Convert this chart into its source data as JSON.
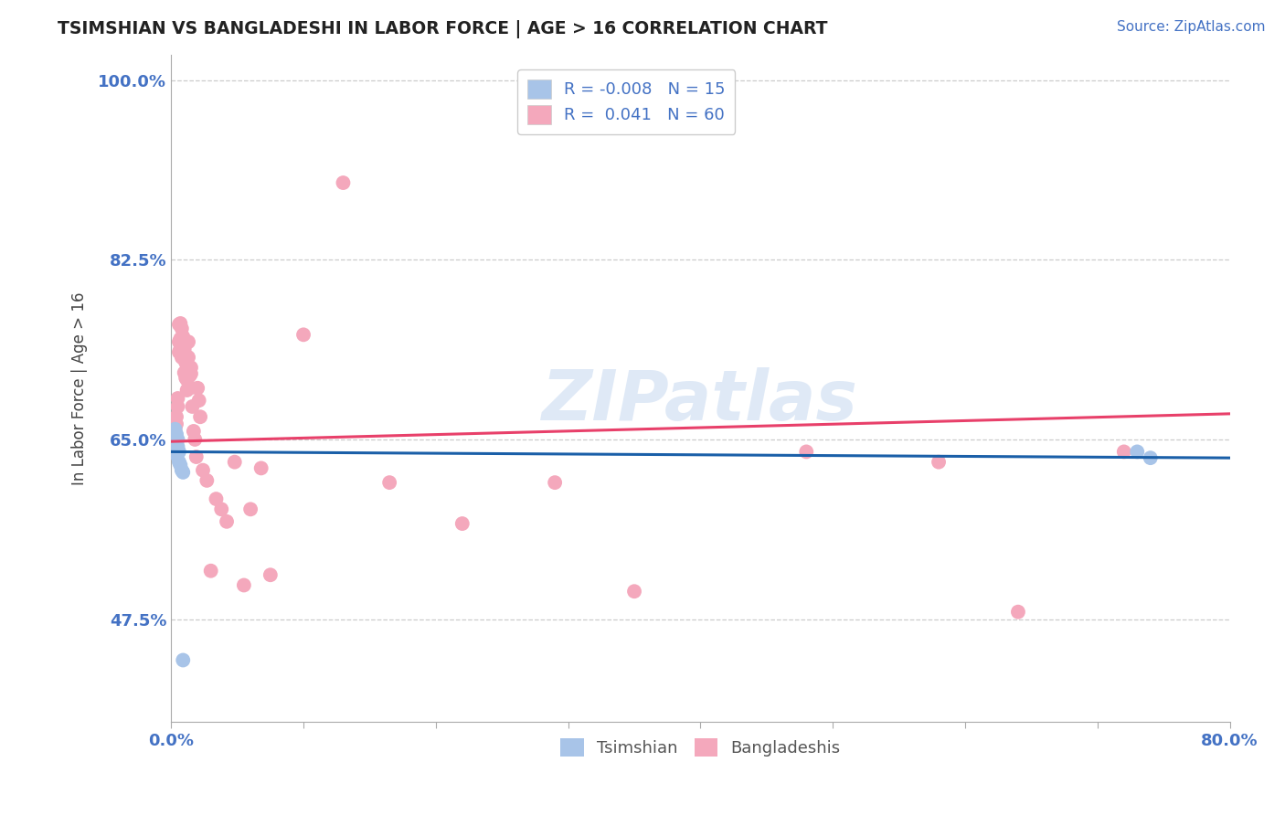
{
  "title": "TSIMSHIAN VS BANGLADESHI IN LABOR FORCE | AGE > 16 CORRELATION CHART",
  "source_text": "Source: ZipAtlas.com",
  "ylabel": "In Labor Force | Age > 16",
  "xlim": [
    0.0,
    0.8
  ],
  "ylim": [
    0.375,
    1.025
  ],
  "xticks": [
    0.0,
    0.1,
    0.2,
    0.3,
    0.4,
    0.5,
    0.6,
    0.7,
    0.8
  ],
  "xticklabels": [
    "0.0%",
    "",
    "",
    "",
    "",
    "",
    "",
    "",
    "80.0%"
  ],
  "ytick_positions": [
    0.475,
    0.65,
    0.825,
    1.0
  ],
  "ytick_labels": [
    "47.5%",
    "65.0%",
    "82.5%",
    "100.0%"
  ],
  "watermark": "ZIPatlas",
  "legend_r_tsimshian": "-0.008",
  "legend_n_tsimshian": "15",
  "legend_r_bangladeshi": "0.041",
  "legend_n_bangladeshi": "60",
  "tsimshian_color": "#a8c4e8",
  "bangladeshi_color": "#f4a8bc",
  "tsimshian_line_color": "#1a5fa8",
  "bangladeshi_line_color": "#e8406a",
  "background_color": "#ffffff",
  "grid_color": "#cccccc",
  "tsimshian_x": [
    0.003,
    0.003,
    0.004,
    0.004,
    0.004,
    0.005,
    0.005,
    0.006,
    0.006,
    0.007,
    0.008,
    0.009,
    0.009,
    0.73,
    0.74
  ],
  "tsimshian_y": [
    0.66,
    0.65,
    0.655,
    0.645,
    0.635,
    0.65,
    0.643,
    0.638,
    0.628,
    0.625,
    0.62,
    0.618,
    0.435,
    0.638,
    0.632
  ],
  "bangladeshi_x": [
    0.003,
    0.003,
    0.004,
    0.004,
    0.005,
    0.005,
    0.006,
    0.006,
    0.006,
    0.007,
    0.007,
    0.007,
    0.008,
    0.008,
    0.008,
    0.009,
    0.009,
    0.009,
    0.01,
    0.01,
    0.01,
    0.011,
    0.011,
    0.012,
    0.012,
    0.013,
    0.013,
    0.013,
    0.014,
    0.014,
    0.015,
    0.015,
    0.016,
    0.017,
    0.018,
    0.019,
    0.02,
    0.021,
    0.022,
    0.024,
    0.027,
    0.03,
    0.034,
    0.038,
    0.042,
    0.048,
    0.055,
    0.06,
    0.068,
    0.075,
    0.1,
    0.13,
    0.165,
    0.22,
    0.29,
    0.35,
    0.48,
    0.58,
    0.64,
    0.72
  ],
  "bangladeshi_y": [
    0.66,
    0.655,
    0.672,
    0.665,
    0.69,
    0.682,
    0.762,
    0.745,
    0.735,
    0.763,
    0.748,
    0.738,
    0.758,
    0.743,
    0.73,
    0.75,
    0.742,
    0.73,
    0.738,
    0.728,
    0.715,
    0.725,
    0.71,
    0.708,
    0.698,
    0.745,
    0.73,
    0.718,
    0.712,
    0.7,
    0.72,
    0.714,
    0.682,
    0.658,
    0.65,
    0.633,
    0.7,
    0.688,
    0.672,
    0.62,
    0.61,
    0.522,
    0.592,
    0.582,
    0.57,
    0.628,
    0.508,
    0.582,
    0.622,
    0.518,
    0.752,
    0.9,
    0.608,
    0.568,
    0.608,
    0.502,
    0.638,
    0.628,
    0.482,
    0.638
  ],
  "trendline_t_x0": 0.0,
  "trendline_t_y0": 0.638,
  "trendline_t_x1": 0.8,
  "trendline_t_y1": 0.632,
  "trendline_b_x0": 0.0,
  "trendline_b_y0": 0.648,
  "trendline_b_x1": 0.8,
  "trendline_b_y1": 0.675
}
